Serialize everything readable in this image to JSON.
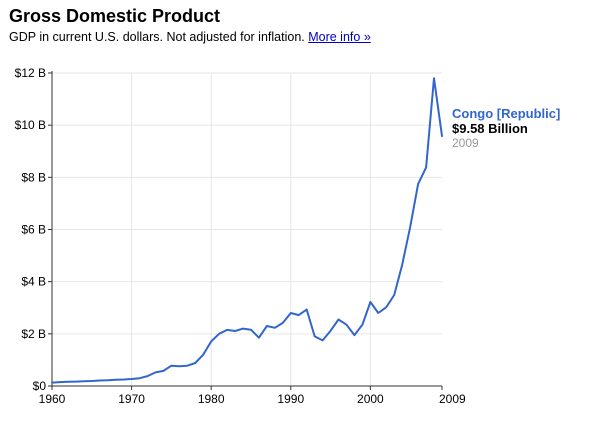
{
  "header": {
    "title": "Gross Domestic Product",
    "subtitle": "GDP in current U.S. dollars. Not adjusted for inflation.",
    "more_info_link": "More info »"
  },
  "legend": {
    "series_name": "Congo [Republic]",
    "value": "$9.58 Billion",
    "year": "2009"
  },
  "colors": {
    "series": "#3366cc",
    "grid": "#e6e6e6",
    "axis": "#333333"
  },
  "chart_data": {
    "type": "line",
    "title": "Gross Domestic Product",
    "xlabel": "",
    "ylabel": "",
    "xlim": [
      1960,
      2009
    ],
    "ylim": [
      0,
      12
    ],
    "y_unit": "billion USD",
    "grid": true,
    "legend_position": "right",
    "x_ticks": [
      1960,
      1970,
      1980,
      1990,
      2000,
      2009
    ],
    "x_tick_labels": [
      "1960",
      "1970",
      "1980",
      "1990",
      "2000",
      "2009"
    ],
    "y_ticks": [
      0,
      2,
      4,
      6,
      8,
      10,
      12
    ],
    "y_tick_labels": [
      "$0",
      "$2 B",
      "$4 B",
      "$6 B",
      "$8 B",
      "$10 B",
      "$12 B"
    ],
    "series": [
      {
        "name": "Congo [Republic]",
        "x": [
          1960,
          1961,
          1962,
          1963,
          1964,
          1965,
          1966,
          1967,
          1968,
          1969,
          1970,
          1971,
          1972,
          1973,
          1974,
          1975,
          1976,
          1977,
          1978,
          1979,
          1980,
          1981,
          1982,
          1983,
          1984,
          1985,
          1986,
          1987,
          1988,
          1989,
          1990,
          1991,
          1992,
          1993,
          1994,
          1995,
          1996,
          1997,
          1998,
          1999,
          2000,
          2001,
          2002,
          2003,
          2004,
          2005,
          2006,
          2007,
          2008,
          2009
        ],
        "values": [
          0.13,
          0.15,
          0.16,
          0.17,
          0.18,
          0.19,
          0.21,
          0.22,
          0.24,
          0.25,
          0.27,
          0.3,
          0.38,
          0.52,
          0.58,
          0.78,
          0.76,
          0.78,
          0.88,
          1.2,
          1.71,
          2.0,
          2.15,
          2.11,
          2.2,
          2.16,
          1.85,
          2.3,
          2.23,
          2.42,
          2.8,
          2.72,
          2.93,
          1.9,
          1.75,
          2.12,
          2.55,
          2.35,
          1.95,
          2.35,
          3.22,
          2.8,
          3.02,
          3.49,
          4.65,
          6.1,
          7.74,
          8.38,
          11.8,
          9.58
        ]
      }
    ]
  }
}
